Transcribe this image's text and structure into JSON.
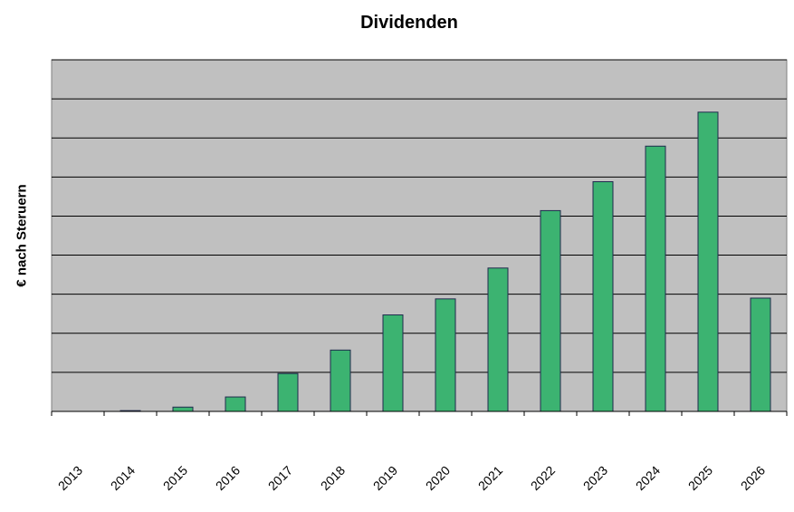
{
  "chart_data": {
    "type": "bar",
    "title": "Dividenden",
    "xlabel": "",
    "ylabel": "€ nach Steruern",
    "categories": [
      "2013",
      "2014",
      "2015",
      "2016",
      "2017",
      "2018",
      "2019",
      "2020",
      "2021",
      "2022",
      "2023",
      "2024",
      "2025",
      "2026"
    ],
    "values": [
      0,
      0.2,
      1.1,
      3.7,
      9.7,
      15.7,
      24.7,
      28.8,
      36.7,
      51.4,
      58.8,
      67.9,
      76.6,
      29.0
    ],
    "ylim": [
      0,
      90
    ],
    "y_gridlines": [
      10,
      20,
      30,
      40,
      50,
      60,
      70,
      80,
      90
    ],
    "y_tick_labels_shown": false,
    "grid": true,
    "legend": "none",
    "colors": {
      "plot_background": "#c0c0c0",
      "bar_fill": "#3cb371",
      "bar_stroke": "#1f2a4d",
      "gridline": "#000000"
    }
  }
}
